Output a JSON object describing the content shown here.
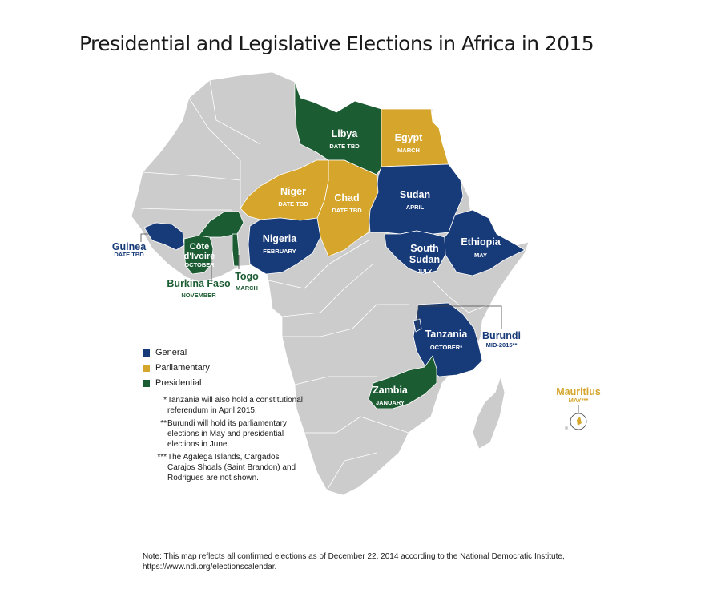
{
  "title": "Presidential and Legislative Elections in Africa in 2015",
  "colors": {
    "general": "#173a78",
    "parliamentary": "#d6a62c",
    "presidential": "#1c5c33",
    "land": "#cccccc",
    "water": "#ffffff"
  },
  "legend": [
    {
      "label": "General",
      "color_key": "general"
    },
    {
      "label": "Parliamentary",
      "color_key": "parliamentary"
    },
    {
      "label": "Presidential",
      "color_key": "presidential"
    }
  ],
  "countries": {
    "libya": {
      "name": "Libya",
      "date": "DATE TBD",
      "type": "presidential"
    },
    "egypt": {
      "name": "Egypt",
      "date": "MARCH",
      "type": "parliamentary"
    },
    "niger": {
      "name": "Niger",
      "date": "DATE TBD",
      "type": "parliamentary"
    },
    "chad": {
      "name": "Chad",
      "date": "DATE TBD",
      "type": "parliamentary"
    },
    "sudan": {
      "name": "Sudan",
      "date": "APRIL",
      "type": "general"
    },
    "south_sudan": {
      "name_line1": "South",
      "name_line2": "Sudan",
      "date": "JULY",
      "type": "general"
    },
    "ethiopia": {
      "name": "Ethiopia",
      "date": "MAY",
      "type": "general"
    },
    "nigeria": {
      "name": "Nigeria",
      "date": "FEBRUARY",
      "type": "general"
    },
    "guinea": {
      "name": "Guinea",
      "date": "DATE TBD",
      "type": "general"
    },
    "cote_divoire": {
      "name_line1": "Côte",
      "name_line2": "d'Ivoire",
      "date": "OCTOBER",
      "type": "presidential"
    },
    "burkina_faso": {
      "name": "Burkina Faso",
      "date": "NOVEMBER",
      "type": "presidential"
    },
    "togo": {
      "name": "Togo",
      "date": "MARCH",
      "type": "presidential"
    },
    "tanzania": {
      "name": "Tanzania",
      "date": "OCTOBER*",
      "type": "general"
    },
    "burundi": {
      "name": "Burundi",
      "date": "MID-2015**",
      "type": "general"
    },
    "zambia": {
      "name": "Zambia",
      "date": "JANUARY",
      "type": "presidential"
    },
    "mauritius": {
      "name": "Mauritius",
      "date": "MAY***",
      "type": "parliamentary"
    }
  },
  "notes": [
    {
      "marker": "*",
      "text": "Tanzania will also hold a constitutional referendum in April 2015."
    },
    {
      "marker": "**",
      "text": "Burundi will hold its parliamentary elections in May and presidential elections in June."
    },
    {
      "marker": "***",
      "text": "The Agalega Islands, Cargados Carajos Shoals (Saint Brandon) and Rodrigues are not shown."
    }
  ],
  "source": "Note: This map reflects all confirmed elections as of December 22, 2014 according to the National Democratic Institute, https://www.ndi.org/electionscalendar."
}
